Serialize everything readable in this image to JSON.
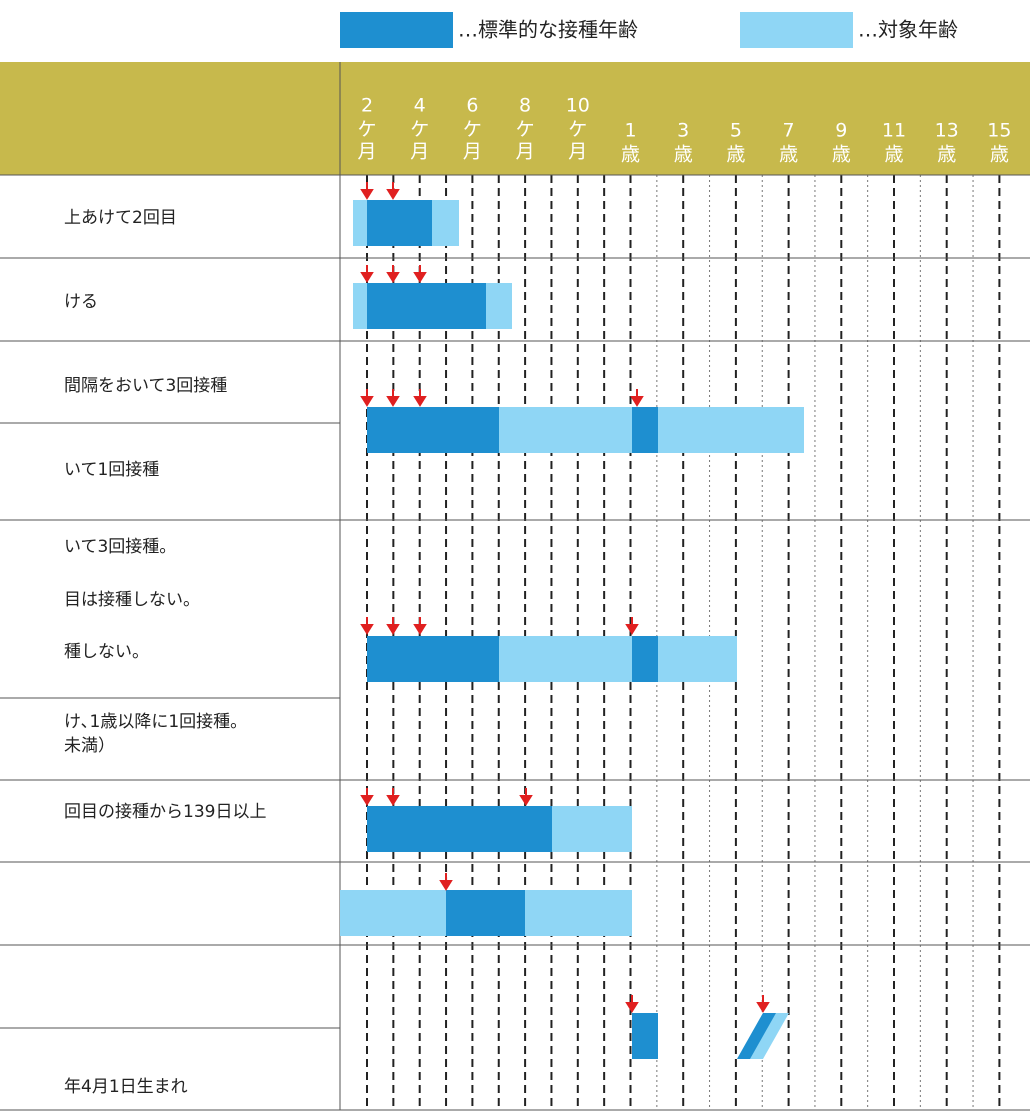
{
  "legend": {
    "standard": "…標準的な接種年齢",
    "target": "…対象年齢"
  },
  "header": {
    "columns": [
      {
        "number": "2",
        "unit": [
          "ケ",
          "月"
        ]
      },
      {
        "number": "4",
        "unit": [
          "ケ",
          "月"
        ]
      },
      {
        "number": "6",
        "unit": [
          "ケ",
          "月"
        ]
      },
      {
        "number": "8",
        "unit": [
          "ケ",
          "月"
        ]
      },
      {
        "number": "10",
        "unit": [
          "ケ",
          "月"
        ]
      },
      {
        "number": "1",
        "unit": [
          "歳"
        ]
      },
      {
        "number": "3",
        "unit": [
          "歳"
        ]
      },
      {
        "number": "5",
        "unit": [
          "歳"
        ]
      },
      {
        "number": "7",
        "unit": [
          "歳"
        ]
      },
      {
        "number": "9",
        "unit": [
          "歳"
        ]
      },
      {
        "number": "11",
        "unit": [
          "歳"
        ]
      },
      {
        "number": "13",
        "unit": [
          "歳"
        ]
      },
      {
        "number": "15",
        "unit": [
          "歳"
        ]
      }
    ]
  },
  "rows": [
    {
      "labels": [
        "上あけて2回目"
      ]
    },
    {
      "labels": [
        "ける"
      ]
    },
    {
      "labels": [
        "間隔をおいて3回接種",
        "いて1回接種"
      ]
    },
    {
      "labels": [
        "いて3回接種。",
        "目は接種しない。",
        "種しない。",
        "け､1歳以降に1回接種。",
        "未満）"
      ]
    },
    {
      "labels": [
        "回目の接種から139日以上"
      ]
    },
    {
      "labels": []
    },
    {
      "labels": [
        "年4月1日生まれ"
      ]
    }
  ]
}
